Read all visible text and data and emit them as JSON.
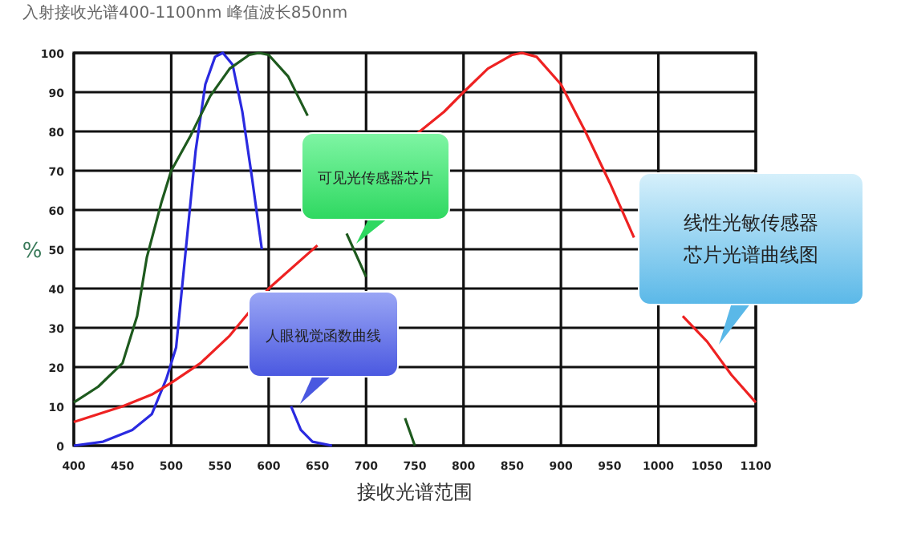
{
  "chart_data": {
    "type": "line",
    "xlabel": "接收光谱范围",
    "ylabel": "%",
    "xlim": [
      400,
      1100
    ],
    "ylim": [
      0,
      100
    ],
    "xticks": [
      400,
      450,
      500,
      550,
      600,
      650,
      700,
      750,
      800,
      850,
      900,
      950,
      1000,
      1050,
      1100
    ],
    "yticks": [
      0,
      10,
      20,
      30,
      40,
      50,
      60,
      70,
      80,
      90,
      100
    ],
    "grid": true,
    "marker": "none",
    "line_style": "solid",
    "series": [
      {
        "color": "#2a2ae0",
        "x": [
          400,
          430,
          460,
          480,
          495,
          505,
          515,
          525,
          535,
          545,
          553,
          563,
          573,
          583,
          593,
          603,
          613,
          623,
          633,
          645,
          665
        ],
        "values": [
          0,
          1,
          4,
          8,
          17,
          25,
          50,
          75,
          92,
          99,
          100,
          97,
          85,
          68,
          50,
          null,
          null,
          10,
          4,
          1,
          0
        ]
      },
      {
        "color": "#1e5a1e",
        "x": [
          400,
          425,
          450,
          465,
          475,
          490,
          500,
          520,
          540,
          560,
          580,
          590,
          600,
          620,
          640,
          660,
          680,
          700,
          720,
          740,
          750
        ],
        "values": [
          11,
          15,
          21,
          33,
          48,
          62,
          70,
          79,
          89,
          96,
          99.5,
          100,
          99.5,
          94,
          84,
          null,
          54,
          43,
          null,
          7,
          0
        ]
      },
      {
        "color": "#ee2222",
        "x": [
          400,
          450,
          480,
          500,
          530,
          560,
          600,
          650,
          700,
          750,
          780,
          800,
          825,
          850,
          860,
          875,
          900,
          925,
          950,
          975,
          1000,
          1025,
          1050,
          1075,
          1100
        ],
        "values": [
          6,
          10,
          13,
          16,
          21,
          28,
          40,
          51,
          null,
          79,
          85,
          90,
          96,
          99.5,
          100,
          99,
          92,
          80,
          67,
          53,
          null,
          33,
          26.5,
          18,
          11
        ]
      }
    ],
    "annotations": [
      "可见光传感器芯片",
      "人眼视觉函数曲线",
      "线性光敏传感器芯片光谱曲线图",
      "入射接收光谱400-1100nm 峰值波长850nm"
    ]
  }
}
